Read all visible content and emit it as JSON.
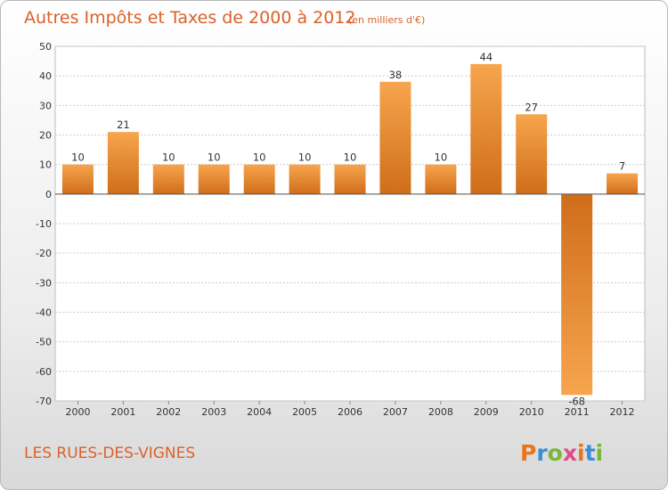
{
  "chart_data": {
    "type": "bar",
    "title": "Autres Impôts et Taxes de 2000 à 2012",
    "unit_note": "(en milliers d'€)",
    "categories": [
      "2000",
      "2001",
      "2002",
      "2003",
      "2004",
      "2005",
      "2006",
      "2007",
      "2008",
      "2009",
      "2010",
      "2011",
      "2012"
    ],
    "values": [
      10,
      21,
      10,
      10,
      10,
      10,
      10,
      38,
      10,
      44,
      27,
      -68,
      7
    ],
    "data_labels": [
      "10",
      "21",
      "10",
      "10",
      "10",
      "10",
      "10",
      "38",
      "10",
      "44",
      "27",
      "-68",
      "7"
    ],
    "yticks": [
      "50",
      "40",
      "30",
      "20",
      "10",
      "0",
      "-10",
      "-20",
      "-30",
      "-40",
      "-50",
      "-60",
      "-70"
    ],
    "ylim": [
      -70,
      50
    ],
    "xlabel": "",
    "ylabel": "",
    "grid": true,
    "colors": {
      "bar_light": "#f7a54e",
      "bar_dark": "#cf6d1a",
      "text_accent": "#d9622a"
    }
  },
  "footer": {
    "commune": "LES RUES-DES-VIGNES",
    "logo_letters": [
      "P",
      "r",
      "o",
      "x",
      "i",
      "t",
      "i"
    ],
    "logo_colors": [
      "#e8751a",
      "#3a8ed6",
      "#7ab63a",
      "#e04a8a",
      "#e8751a",
      "#3a8ed6",
      "#7ab63a"
    ]
  }
}
